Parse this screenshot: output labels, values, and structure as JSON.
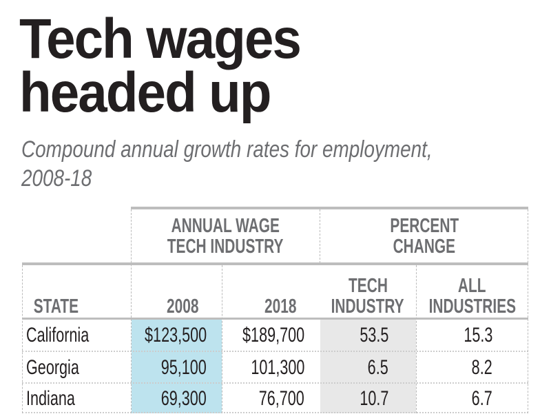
{
  "title_line1": "Tech wages",
  "title_line2": "headed up",
  "subtitle_line1": "Compound annual growth rates for employment,",
  "subtitle_line2": "2008-18",
  "table": {
    "group_headers": [
      {
        "line1": "ANNUAL WAGE",
        "line2": "TECH INDUSTRY"
      },
      {
        "line1": "PERCENT",
        "line2": "CHANGE"
      }
    ],
    "columns": [
      {
        "line1": "",
        "line2": "STATE"
      },
      {
        "line1": "",
        "line2": "2008"
      },
      {
        "line1": "",
        "line2": "2018"
      },
      {
        "line1": "TECH",
        "line2": "INDUSTRY"
      },
      {
        "line1": "ALL",
        "line2": "INDUSTRIES"
      }
    ],
    "rows": [
      [
        "California",
        "$123,500",
        "$189,700",
        "53.5",
        "15.3"
      ],
      [
        "Georgia",
        "95,100",
        "101,300",
        "6.5",
        "8.2"
      ],
      [
        "Indiana",
        "69,300",
        "76,700",
        "10.7",
        "6.7"
      ]
    ]
  },
  "colors": {
    "highlight_2008": "#bde3ee",
    "highlight_tech": "#e8e8e8",
    "header_text": "#6d6e71",
    "rule": "#bdbdbd"
  }
}
